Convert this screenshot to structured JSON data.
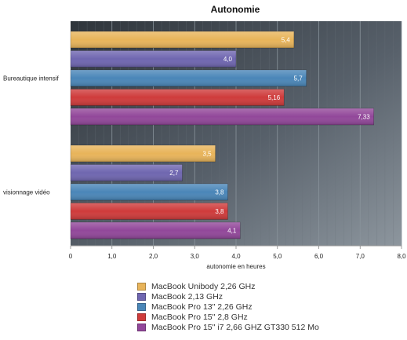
{
  "chart_data": {
    "type": "bar",
    "orientation": "horizontal",
    "title": "Autonomie",
    "xlabel": "autonomie en heures",
    "ylabel": "",
    "xlim": [
      0,
      8
    ],
    "x_ticks": [
      "0",
      "1,0",
      "2,0",
      "3,0",
      "4,0",
      "5,0",
      "6,0",
      "7,0",
      "8,0"
    ],
    "grid": true,
    "legend_position": "bottom",
    "categories": [
      "Bureautique intensif",
      "visionnage vidéo"
    ],
    "series": [
      {
        "name": "MacBook Unibody 2,26 GHz",
        "color": "#e8b45a",
        "values": [
          5.4,
          3.5
        ],
        "labels": [
          "5,4",
          "3,5"
        ]
      },
      {
        "name": "MacBook 2,13 GHz",
        "color": "#6f66b0",
        "values": [
          4.0,
          2.7
        ],
        "labels": [
          "4,0",
          "2,7"
        ]
      },
      {
        "name": "MacBook Pro 13\" 2,26 GHz",
        "color": "#4a86b8",
        "values": [
          5.7,
          3.8
        ],
        "labels": [
          "5,7",
          "3,8"
        ]
      },
      {
        "name": "MacBook Pro 15\" 2,8 GHz",
        "color": "#cf3b3b",
        "values": [
          5.16,
          3.8
        ],
        "labels": [
          "5,16",
          "3,8"
        ]
      },
      {
        "name": "MacBook Pro 15\" i7 2,66 GHZ GT330 512 Mo",
        "color": "#92479a",
        "values": [
          7.33,
          4.1
        ],
        "labels": [
          "7,33",
          "4,1"
        ]
      }
    ]
  }
}
